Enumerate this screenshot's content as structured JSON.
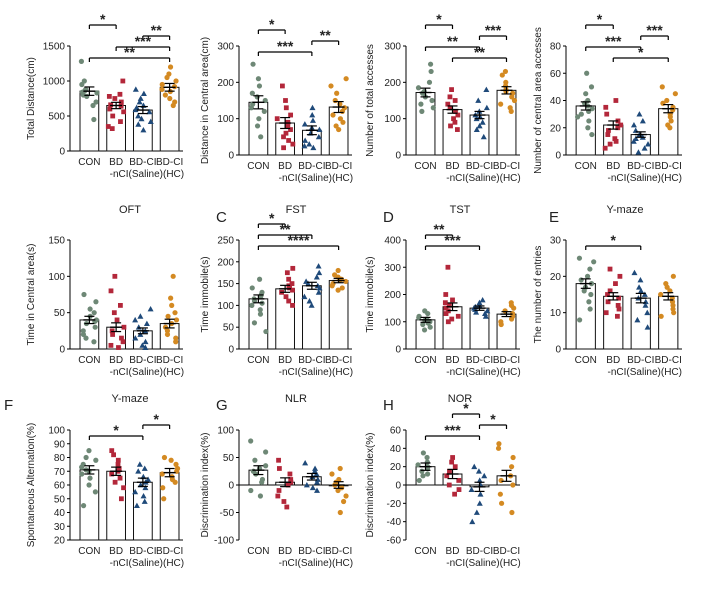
{
  "figure": {
    "categories": [
      "CON",
      "BD",
      "BD-CI",
      "BD-CI"
    ],
    "category_subtitle": "-nCI(Saline)(HC)",
    "colors": {
      "CON": "#6e8876",
      "BD": "#b3273a",
      "BD_CI_Saline": "#1f4a7a",
      "BD_CI_HC": "#d48a22"
    },
    "marker_shapes": [
      "circle",
      "square",
      "triangle",
      "circle"
    ]
  },
  "chart_data": [
    {
      "type": "bar",
      "panel_letter": "",
      "title": "",
      "xlabel": "",
      "ylabel": "Total Distance(cm)",
      "ylim": [
        0,
        1500
      ],
      "yticks": [
        0,
        500,
        1000,
        1500
      ],
      "categories": [
        "CON",
        "BD",
        "BD-CI",
        "BD-CI"
      ],
      "values": [
        855,
        650,
        585,
        910
      ],
      "sem": [
        60,
        45,
        50,
        55
      ],
      "points": [
        [
          1280,
          1000,
          950,
          880,
          860,
          840,
          830,
          800,
          780,
          700,
          650,
          450
        ],
        [
          1000,
          810,
          780,
          750,
          700,
          660,
          640,
          600,
          560,
          500,
          420,
          350,
          320
        ],
        [
          880,
          820,
          750,
          700,
          650,
          620,
          590,
          560,
          500,
          460,
          420,
          380,
          300
        ],
        [
          1200,
          1100,
          1050,
          1000,
          950,
          920,
          880,
          850,
          800,
          750,
          700,
          650
        ]
      ],
      "significance": [
        {
          "from": 0,
          "to": 3,
          "label": "**"
        },
        {
          "from": 0,
          "to": 1,
          "label": "*"
        },
        {
          "from": 2,
          "to": 3,
          "label": "**"
        },
        {
          "from": 1,
          "to": 3,
          "label": "***"
        }
      ]
    },
    {
      "type": "bar",
      "panel_letter": "",
      "title": "",
      "xlabel": "",
      "ylabel": "Distance in Central area(cm)",
      "ylim": [
        0,
        300
      ],
      "yticks": [
        0,
        100,
        200,
        300
      ],
      "categories": [
        "CON",
        "BD",
        "BD-CI",
        "BD-CI"
      ],
      "values": [
        145,
        88,
        68,
        132
      ],
      "sem": [
        18,
        15,
        12,
        15
      ],
      "points": [
        [
          250,
          210,
          190,
          170,
          160,
          150,
          140,
          130,
          120,
          100,
          80,
          50
        ],
        [
          190,
          150,
          130,
          110,
          100,
          90,
          80,
          70,
          60,
          50,
          40,
          30,
          20
        ],
        [
          130,
          110,
          95,
          85,
          75,
          70,
          60,
          50,
          40,
          30,
          25,
          20
        ],
        [
          210,
          190,
          170,
          150,
          140,
          130,
          120,
          110,
          100,
          90,
          80,
          70
        ]
      ],
      "significance": [
        {
          "from": 0,
          "to": 2,
          "label": "***"
        },
        {
          "from": 0,
          "to": 1,
          "label": "*"
        },
        {
          "from": 2,
          "to": 3,
          "label": "**"
        }
      ]
    },
    {
      "type": "bar",
      "panel_letter": "",
      "title": "",
      "xlabel": "",
      "ylabel": "Number of total accesses",
      "ylim": [
        0,
        300
      ],
      "yticks": [
        0,
        100,
        200,
        300
      ],
      "categories": [
        "CON",
        "BD",
        "BD-CI",
        "BD-CI"
      ],
      "values": [
        172,
        125,
        110,
        178
      ],
      "sem": [
        12,
        10,
        10,
        10
      ],
      "points": [
        [
          250,
          230,
          200,
          185,
          175,
          170,
          160,
          150,
          140,
          130,
          120
        ],
        [
          180,
          160,
          150,
          140,
          130,
          120,
          110,
          100,
          90,
          80,
          70
        ],
        [
          180,
          150,
          130,
          120,
          110,
          105,
          100,
          90,
          80,
          70,
          50
        ],
        [
          230,
          220,
          200,
          190,
          180,
          175,
          170,
          160,
          150,
          140,
          130,
          120
        ]
      ],
      "significance": [
        {
          "from": 0,
          "to": 2,
          "label": "**"
        },
        {
          "from": 0,
          "to": 1,
          "label": "*"
        },
        {
          "from": 1,
          "to": 3,
          "label": "**"
        },
        {
          "from": 2,
          "to": 3,
          "label": "***"
        }
      ]
    },
    {
      "type": "bar",
      "panel_letter": "",
      "title": "",
      "xlabel": "",
      "ylabel": "Number of central area accesses",
      "ylim": [
        0,
        80
      ],
      "yticks": [
        0,
        20,
        40,
        60,
        80
      ],
      "categories": [
        "CON",
        "BD",
        "BD-CI",
        "BD-CI"
      ],
      "values": [
        36,
        22,
        15,
        34
      ],
      "sem": [
        3,
        3,
        2,
        3
      ],
      "points": [
        [
          60,
          50,
          45,
          40,
          38,
          36,
          34,
          32,
          30,
          28,
          25,
          20,
          15
        ],
        [
          40,
          35,
          30,
          25,
          22,
          20,
          18,
          15,
          12,
          10,
          8,
          5
        ],
        [
          30,
          25,
          22,
          18,
          15,
          13,
          12,
          10,
          8,
          5,
          2
        ],
        [
          50,
          45,
          40,
          38,
          35,
          33,
          30,
          28,
          25,
          22,
          20
        ]
      ],
      "significance": [
        {
          "from": 0,
          "to": 2,
          "label": "***"
        },
        {
          "from": 0,
          "to": 1,
          "label": "*"
        },
        {
          "from": 1,
          "to": 3,
          "label": "*"
        },
        {
          "from": 2,
          "to": 3,
          "label": "***"
        }
      ]
    },
    {
      "type": "bar",
      "panel_letter": "",
      "title": "OFT",
      "xlabel": "",
      "ylabel": "Time in Central area(s)",
      "ylim": [
        0,
        150
      ],
      "yticks": [
        0,
        50,
        100,
        150
      ],
      "categories": [
        "CON",
        "BD",
        "BD-CI",
        "BD-CI"
      ],
      "values": [
        40,
        30,
        25,
        35
      ],
      "sem": [
        5,
        6,
        4,
        6
      ],
      "points": [
        [
          75,
          65,
          55,
          50,
          45,
          40,
          38,
          35,
          30,
          25,
          20,
          15,
          10
        ],
        [
          100,
          80,
          60,
          50,
          40,
          30,
          25,
          20,
          15,
          10,
          5,
          2
        ],
        [
          55,
          45,
          40,
          35,
          30,
          25,
          20,
          15,
          10,
          5,
          2
        ],
        [
          100,
          70,
          60,
          50,
          45,
          40,
          35,
          30,
          25,
          20,
          15,
          10
        ]
      ],
      "significance": []
    },
    {
      "type": "bar",
      "panel_letter": "C",
      "title": "FST",
      "xlabel": "",
      "ylabel": "Time immobile(s)",
      "ylim": [
        0,
        250
      ],
      "yticks": [
        0,
        50,
        100,
        150,
        200,
        250
      ],
      "categories": [
        "CON",
        "BD",
        "BD-CI",
        "BD-CI"
      ],
      "values": [
        115,
        138,
        145,
        157
      ],
      "sem": [
        9,
        8,
        8,
        5
      ],
      "points": [
        [
          160,
          140,
          130,
          125,
          120,
          115,
          110,
          105,
          100,
          90,
          80,
          60,
          40
        ],
        [
          185,
          175,
          160,
          150,
          145,
          140,
          135,
          130,
          120,
          110,
          100
        ],
        [
          190,
          175,
          165,
          155,
          150,
          145,
          140,
          130,
          120,
          110,
          100
        ],
        [
          180,
          170,
          165,
          160,
          158,
          155,
          150,
          145,
          140,
          135
        ]
      ],
      "significance": [
        {
          "from": 0,
          "to": 3,
          "label": "****"
        },
        {
          "from": 0,
          "to": 2,
          "label": "**"
        },
        {
          "from": 0,
          "to": 1,
          "label": "*"
        }
      ]
    },
    {
      "type": "bar",
      "panel_letter": "D",
      "title": "TST",
      "xlabel": "",
      "ylabel": "Time immobile(s)",
      "ylim": [
        0,
        400
      ],
      "yticks": [
        0,
        100,
        200,
        300,
        400
      ],
      "categories": [
        "CON",
        "BD",
        "BD-CI",
        "BD-CI"
      ],
      "values": [
        107,
        155,
        150,
        128
      ],
      "sem": [
        9,
        14,
        8,
        9
      ],
      "points": [
        [
          140,
          130,
          120,
          115,
          110,
          105,
          100,
          95,
          90,
          80,
          70
        ],
        [
          300,
          200,
          180,
          170,
          160,
          150,
          140,
          130,
          120,
          110,
          100
        ],
        [
          180,
          170,
          160,
          155,
          150,
          145,
          140,
          135,
          130,
          120
        ],
        [
          170,
          160,
          150,
          140,
          130,
          120,
          110,
          100,
          90
        ]
      ],
      "significance": [
        {
          "from": 0,
          "to": 2,
          "label": "***"
        },
        {
          "from": 0,
          "to": 1,
          "label": "**"
        }
      ]
    },
    {
      "type": "bar",
      "panel_letter": "E",
      "title": "Y-maze",
      "xlabel": "",
      "ylabel": "The number of entries",
      "ylim": [
        0,
        30
      ],
      "yticks": [
        0,
        10,
        20,
        30
      ],
      "categories": [
        "CON",
        "BD",
        "BD-CI",
        "BD-CI"
      ],
      "values": [
        18,
        14.5,
        14,
        14.5
      ],
      "sem": [
        1.3,
        1,
        1.3,
        1
      ],
      "points": [
        [
          25,
          24,
          22,
          20,
          19,
          18,
          17,
          16,
          15,
          13,
          11,
          8
        ],
        [
          22,
          20,
          18,
          16,
          15,
          14,
          13,
          12,
          11,
          10,
          9
        ],
        [
          21,
          19,
          17,
          16,
          15,
          14,
          13,
          12,
          10,
          8,
          6
        ],
        [
          20,
          18,
          17,
          16,
          15,
          14,
          13,
          12,
          11,
          10,
          9
        ]
      ],
      "significance": [
        {
          "from": 0,
          "to": 2,
          "label": "*"
        }
      ]
    },
    {
      "type": "bar",
      "panel_letter": "F",
      "title": "Y-maze",
      "xlabel": "",
      "ylabel": "Spontaneous Alternation(%)",
      "ylim": [
        20,
        100
      ],
      "yticks": [
        20,
        30,
        40,
        50,
        60,
        70,
        80,
        90,
        100
      ],
      "categories": [
        "CON",
        "BD",
        "BD-CI",
        "BD-CI"
      ],
      "values": [
        71,
        70,
        62,
        69
      ],
      "sem": [
        3,
        3,
        3,
        3
      ],
      "points": [
        [
          85,
          80,
          78,
          75,
          73,
          71,
          70,
          68,
          65,
          60,
          55,
          45
        ],
        [
          85,
          82,
          78,
          75,
          72,
          70,
          68,
          65,
          62,
          58,
          50
        ],
        [
          75,
          72,
          70,
          66,
          64,
          62,
          60,
          58,
          55,
          52,
          48,
          45
        ],
        [
          80,
          78,
          75,
          72,
          70,
          68,
          66,
          64,
          62,
          58,
          50
        ]
      ],
      "significance": [
        {
          "from": 0,
          "to": 2,
          "label": "*"
        },
        {
          "from": 2,
          "to": 3,
          "label": "*"
        }
      ]
    },
    {
      "type": "bar",
      "panel_letter": "G",
      "title": "NLR",
      "xlabel": "",
      "ylabel": "Discrimination index(%)",
      "ylim": [
        -100,
        100
      ],
      "yticks": [
        -100,
        -50,
        0,
        50,
        100
      ],
      "categories": [
        "CON",
        "BD",
        "BD-CI",
        "BD-CI"
      ],
      "values": [
        27,
        5,
        15,
        0
      ],
      "sem": [
        8,
        8,
        6,
        6
      ],
      "points": [
        [
          80,
          60,
          45,
          35,
          30,
          25,
          20,
          10,
          5,
          -10,
          -20
        ],
        [
          45,
          30,
          20,
          10,
          5,
          0,
          -10,
          -20,
          -30,
          -40
        ],
        [
          40,
          30,
          25,
          20,
          15,
          10,
          5,
          0,
          -5,
          -10
        ],
        [
          30,
          20,
          10,
          5,
          0,
          -5,
          -10,
          -20,
          -30,
          -50
        ]
      ],
      "significance": []
    },
    {
      "type": "bar",
      "panel_letter": "H",
      "title": "NOR",
      "xlabel": "",
      "ylabel": "Discrimination index(%)",
      "ylim": [
        -60,
        60
      ],
      "yticks": [
        -60,
        -40,
        -20,
        0,
        20,
        40,
        60
      ],
      "categories": [
        "CON",
        "BD",
        "BD-CI",
        "BD-CI"
      ],
      "values": [
        20,
        12,
        -2,
        10
      ],
      "sem": [
        4,
        5,
        5,
        6
      ],
      "points": [
        [
          35,
          30,
          25,
          22,
          20,
          18,
          15,
          12,
          10,
          5
        ],
        [
          30,
          25,
          20,
          15,
          10,
          5,
          0,
          -5,
          -10
        ],
        [
          20,
          15,
          10,
          5,
          0,
          -5,
          -10,
          -20,
          -30,
          -40
        ],
        [
          45,
          40,
          30,
          20,
          10,
          5,
          0,
          -10,
          -20,
          -30
        ]
      ],
      "significance": [
        {
          "from": 0,
          "to": 2,
          "label": "***"
        },
        {
          "from": 1,
          "to": 2,
          "label": "*"
        },
        {
          "from": 2,
          "to": 3,
          "label": "*"
        }
      ]
    }
  ]
}
